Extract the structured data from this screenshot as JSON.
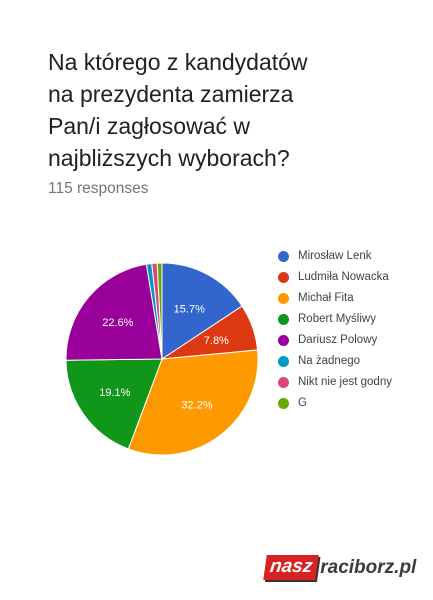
{
  "question": {
    "lines": [
      "Na którego z kandydatów",
      "na prezydenta zamierza",
      "Pan/i zagłosować w",
      "najbliższych wyborach?"
    ],
    "responses": "115 responses"
  },
  "chart_data": {
    "type": "pie",
    "total_responses": 115,
    "slices": [
      {
        "label": "Mirosław Lenk",
        "value": 15.7,
        "color": "#3366cc",
        "value_label": "15.7%"
      },
      {
        "label": "Ludmiła Nowacka",
        "value": 7.8,
        "color": "#dc3912",
        "value_label": "7.8%"
      },
      {
        "label": "Michał Fita",
        "value": 32.2,
        "color": "#ff9900",
        "value_label": "32.2%"
      },
      {
        "label": "Robert Myśliwy",
        "value": 19.1,
        "color": "#109618",
        "value_label": "19.1%"
      },
      {
        "label": "Dariusz Polowy",
        "value": 22.6,
        "color": "#990099",
        "value_label": "22.6%"
      },
      {
        "label": "Na żadnego",
        "value": 0.9,
        "color": "#0099c6",
        "value_label": ""
      },
      {
        "label": "Nikt nie jest godny",
        "value": 0.9,
        "color": "#dd4477",
        "value_label": ""
      },
      {
        "label": "G",
        "value": 0.8,
        "color": "#66aa00",
        "value_label": ""
      }
    ],
    "start_angle_deg": 90,
    "direction": "clockwise",
    "legend_position": "right"
  },
  "watermark": {
    "part1": "nasz",
    "part2": "raciborz.pl"
  }
}
